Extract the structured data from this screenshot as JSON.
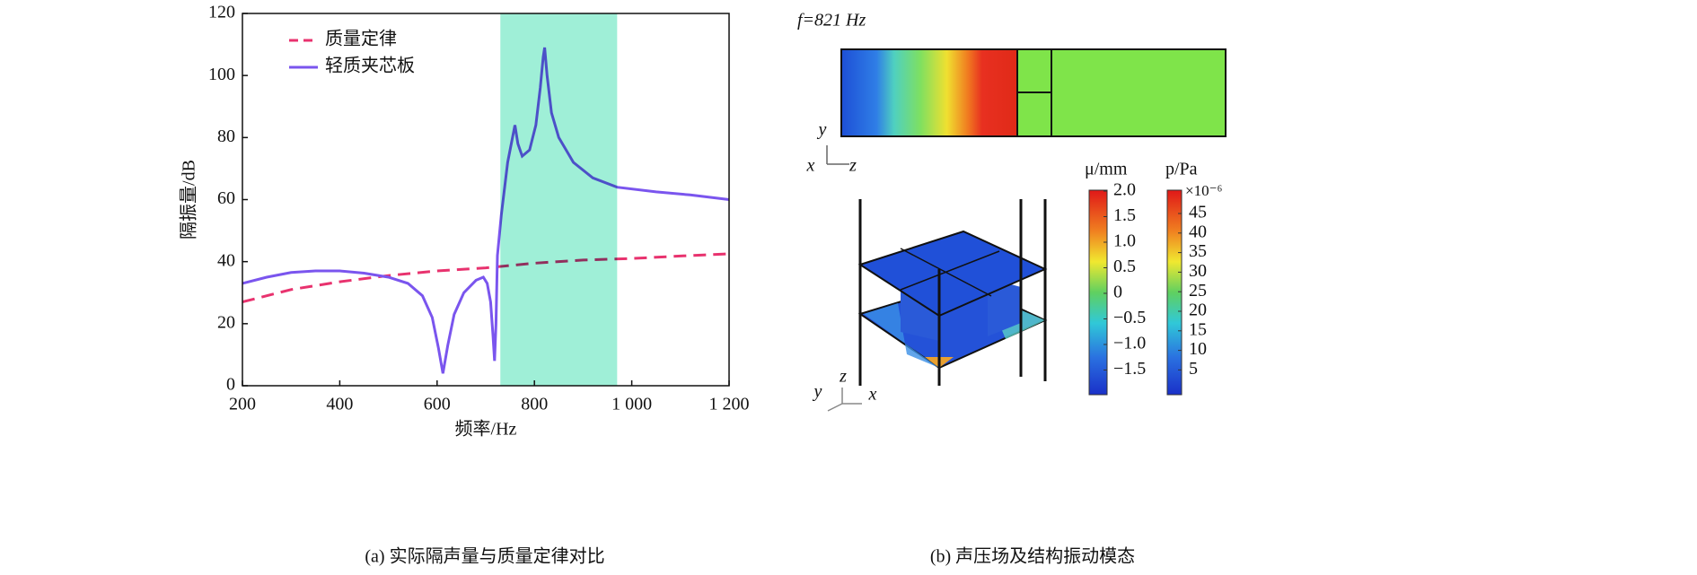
{
  "chart_data": {
    "type": "line",
    "xlabel": "频率/Hz",
    "ylabel": "隔振量/dB",
    "caption": "(a) 实际隔声量与质量定律对比",
    "xlim": [
      200,
      1200
    ],
    "ylim": [
      0,
      120
    ],
    "xticks": [
      200,
      400,
      600,
      800,
      {
        "value": 1000,
        "label": "1 000"
      },
      {
        "value": 1200,
        "label": "1 200"
      }
    ],
    "yticks": [
      0,
      20,
      40,
      60,
      80,
      100,
      120
    ],
    "legend": "upper-left",
    "shaded_band": {
      "x": [
        730,
        970
      ],
      "color": "#8eedd0"
    },
    "series": [
      {
        "name": "质量定律",
        "color": "#e8326e",
        "style": "dashed",
        "x": [
          200,
          300,
          400,
          500,
          600,
          700,
          800,
          900,
          1000,
          1100,
          1200
        ],
        "values": [
          27,
          31,
          33.5,
          35.5,
          37,
          38,
          39.5,
          40.5,
          41,
          41.8,
          42.5
        ]
      },
      {
        "name": "轻质夹芯板",
        "color": "#7a55ee",
        "style": "solid",
        "x": [
          200,
          250,
          300,
          350,
          400,
          450,
          500,
          540,
          570,
          590,
          603,
          612,
          622,
          635,
          655,
          680,
          695,
          703,
          710,
          715,
          718,
          721,
          724,
          732,
          745,
          755,
          760,
          766,
          775,
          790,
          803,
          812,
          818,
          821,
          826,
          835,
          850,
          880,
          920,
          970,
          1050,
          1120,
          1200
        ],
        "values": [
          33,
          35,
          36.5,
          37,
          37,
          36.3,
          35,
          33,
          29,
          22,
          12,
          4,
          13,
          23,
          30,
          34,
          35,
          33,
          27,
          16,
          8,
          20,
          42,
          55,
          72,
          80,
          84,
          78,
          74,
          76,
          84,
          96,
          106,
          109,
          100,
          88,
          80,
          72,
          67,
          64,
          62.5,
          61.5,
          60
        ]
      }
    ]
  },
  "figure_b": {
    "annotation": "f=821 Hz",
    "caption": "(b) 声压场及结构振动模态",
    "axes_labels": [
      "y",
      "x",
      "z",
      "z",
      "y",
      "x"
    ],
    "colorbar_mu": {
      "title": "μ/mm",
      "ticks": [
        "2.0",
        "1.5",
        "1.0",
        "0.5",
        "0",
        "−0.5",
        "−1.0",
        "−1.5"
      ]
    },
    "colorbar_p": {
      "title": "p/Pa",
      "exponent": "×10⁻⁶",
      "ticks": [
        "45",
        "40",
        "35",
        "30",
        "25",
        "20",
        "15",
        "10",
        "5"
      ]
    }
  }
}
